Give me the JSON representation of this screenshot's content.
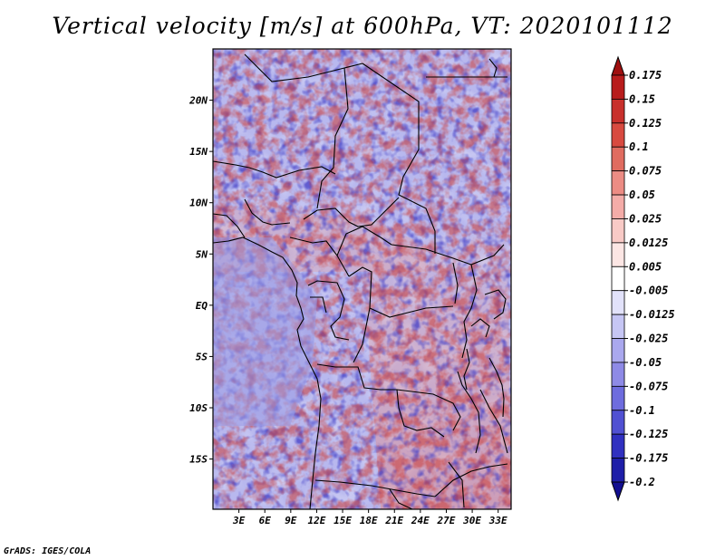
{
  "title": "Vertical velocity [m/s] at 600hPa, VT: 2020101112",
  "credit": "GrADS: IGES/COLA",
  "map": {
    "lat_labels": [
      "20N",
      "15N",
      "10N",
      "5N",
      "EQ",
      "5S",
      "10S",
      "15S"
    ],
    "lat_values": [
      20,
      15,
      10,
      5,
      0,
      -5,
      -10,
      -15
    ],
    "lon_labels": [
      "3E",
      "6E",
      "9E",
      "12E",
      "15E",
      "18E",
      "21E",
      "24E",
      "27E",
      "30E",
      "33E"
    ],
    "lon_values": [
      3,
      6,
      9,
      12,
      15,
      18,
      21,
      24,
      27,
      30,
      33
    ],
    "lat_range": [
      -19.9,
      25
    ],
    "lon_range": [
      0,
      34.5
    ]
  },
  "colorbar": {
    "levels": [
      "0.175",
      "0.15",
      "0.125",
      "0.1",
      "0.075",
      "0.05",
      "0.025",
      "0.0125",
      "0.005",
      "-0.005",
      "-0.0125",
      "-0.025",
      "-0.05",
      "-0.075",
      "-0.1",
      "-0.125",
      "-0.175",
      "-0.2"
    ],
    "colors": [
      "#a01010",
      "#b81c1c",
      "#c8302c",
      "#d84a40",
      "#e06c60",
      "#ec8c84",
      "#f4aca8",
      "#f8cac6",
      "#fce6e4",
      "#ffffff",
      "#e2e2fa",
      "#c6c6f4",
      "#aaa8ee",
      "#8e8ae6",
      "#6e6cde",
      "#5050d2",
      "#3030c0",
      "#1e1ea8",
      "#120e90"
    ]
  }
}
